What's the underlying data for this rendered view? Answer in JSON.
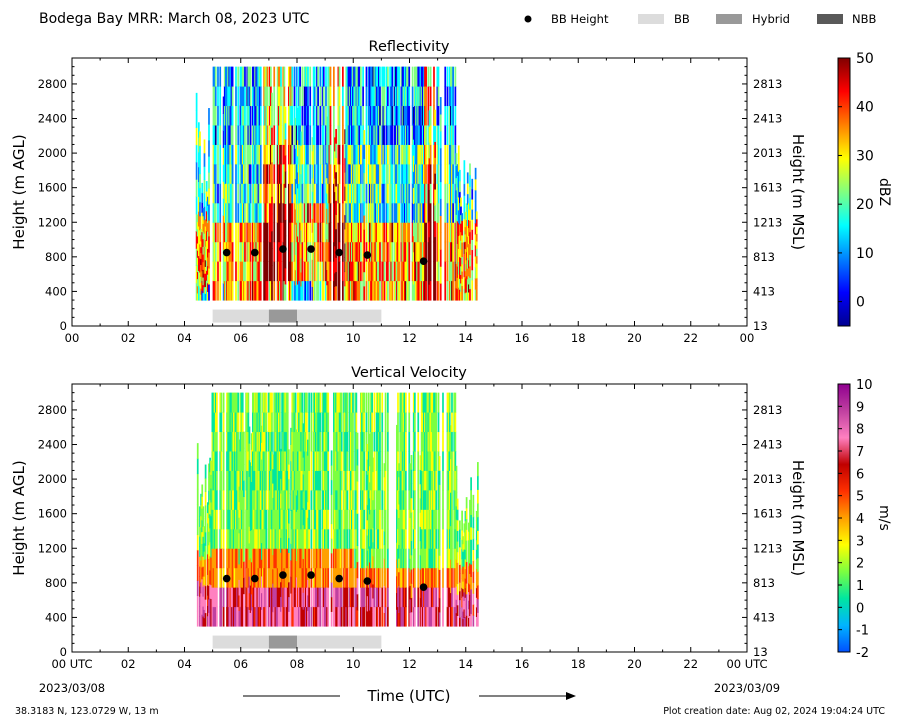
{
  "header": {
    "title": "Bodega Bay MRR:  March 08, 2023 UTC",
    "legend": [
      {
        "label": "BB Height",
        "marker": "dot",
        "color": "#000000"
      },
      {
        "label": "BB",
        "marker": "swatch",
        "color": "#dcdcdc"
      },
      {
        "label": "Hybrid",
        "marker": "swatch",
        "color": "#999999"
      },
      {
        "label": "NBB",
        "marker": "swatch",
        "color": "#595959"
      }
    ]
  },
  "chart_data": [
    {
      "type": "heatmap",
      "title": "Reflectivity",
      "ylabel": "Height (m AGL)",
      "y2label": "Height (m MSL)",
      "ylim": [
        0,
        3100
      ],
      "xlim": [
        0,
        24
      ],
      "y_ticks": [
        "0",
        "400",
        "800",
        "1200",
        "1600",
        "2000",
        "2400",
        "2800"
      ],
      "y2_ticks": [
        "13",
        "413",
        "813",
        "1213",
        "1613",
        "2013",
        "2413",
        "2813"
      ],
      "x_ticks": [
        "00",
        "02",
        "04",
        "06",
        "08",
        "10",
        "12",
        "14",
        "16",
        "18",
        "20",
        "22",
        "00"
      ],
      "data_extent_hours": [
        4.4,
        14.4
      ],
      "data_height_range_m": [
        300,
        3000
      ],
      "bb_height_points": [
        {
          "x": 5.5,
          "y": 850
        },
        {
          "x": 6.5,
          "y": 850
        },
        {
          "x": 7.5,
          "y": 890
        },
        {
          "x": 8.5,
          "y": 890
        },
        {
          "x": 9.5,
          "y": 850
        },
        {
          "x": 10.5,
          "y": 820
        },
        {
          "x": 12.5,
          "y": 750
        }
      ],
      "bb_type_segments": [
        {
          "start": 5.0,
          "end": 7.0,
          "type": "BB"
        },
        {
          "start": 7.0,
          "end": 8.0,
          "type": "Hybrid"
        },
        {
          "start": 8.0,
          "end": 11.0,
          "type": "BB"
        }
      ],
      "colorbar": {
        "label": "dBZ",
        "range": [
          -5,
          50
        ],
        "ticks": [
          "0",
          "10",
          "20",
          "30",
          "40",
          "50"
        ],
        "colors": [
          "#00008f",
          "#0000ff",
          "#0080ff",
          "#00ffff",
          "#80ff80",
          "#ffff00",
          "#ff8000",
          "#ff0000",
          "#800000"
        ]
      }
    },
    {
      "type": "heatmap",
      "title": "Vertical Velocity",
      "ylabel": "Height (m AGL)",
      "y2label": "Height (m MSL)",
      "xlabel": "Time (UTC)",
      "ylim": [
        0,
        3100
      ],
      "xlim": [
        0,
        24
      ],
      "y_ticks": [
        "0",
        "400",
        "800",
        "1200",
        "1600",
        "2000",
        "2400",
        "2800"
      ],
      "y2_ticks": [
        "13",
        "413",
        "813",
        "1213",
        "1613",
        "2013",
        "2413",
        "2813"
      ],
      "x_ticks": [
        "00 UTC",
        "02",
        "04",
        "06",
        "08",
        "10",
        "12",
        "14",
        "16",
        "18",
        "20",
        "22",
        "00 UTC"
      ],
      "x_date_left": "2023/03/08",
      "x_date_right": "2023/03/09",
      "data_extent_hours": [
        4.4,
        14.4
      ],
      "data_height_range_m": [
        300,
        3000
      ],
      "bb_height_points": [
        {
          "x": 5.5,
          "y": 850
        },
        {
          "x": 6.5,
          "y": 850
        },
        {
          "x": 7.5,
          "y": 890
        },
        {
          "x": 8.5,
          "y": 890
        },
        {
          "x": 9.5,
          "y": 850
        },
        {
          "x": 10.5,
          "y": 820
        },
        {
          "x": 12.5,
          "y": 750
        }
      ],
      "bb_type_segments": [
        {
          "start": 5.0,
          "end": 7.0,
          "type": "BB"
        },
        {
          "start": 7.0,
          "end": 8.0,
          "type": "Hybrid"
        },
        {
          "start": 8.0,
          "end": 11.0,
          "type": "BB"
        }
      ],
      "colorbar": {
        "label": "m/s",
        "range": [
          -2,
          10
        ],
        "ticks": [
          "-2",
          "-1",
          "0",
          "1",
          "2",
          "3",
          "4",
          "5",
          "6",
          "7",
          "8",
          "9",
          "10"
        ],
        "colors": [
          "#0050ff",
          "#00b4ff",
          "#00e6a0",
          "#7cff40",
          "#ffff00",
          "#ffa000",
          "#ff3000",
          "#c00000",
          "#ff80c0",
          "#c040a0",
          "#900090"
        ]
      }
    }
  ],
  "footer": {
    "location": "38.3183 N, 123.0729 W, 13 m",
    "creation_date": "Plot creation date: Aug 02, 2024 19:04:24 UTC"
  }
}
